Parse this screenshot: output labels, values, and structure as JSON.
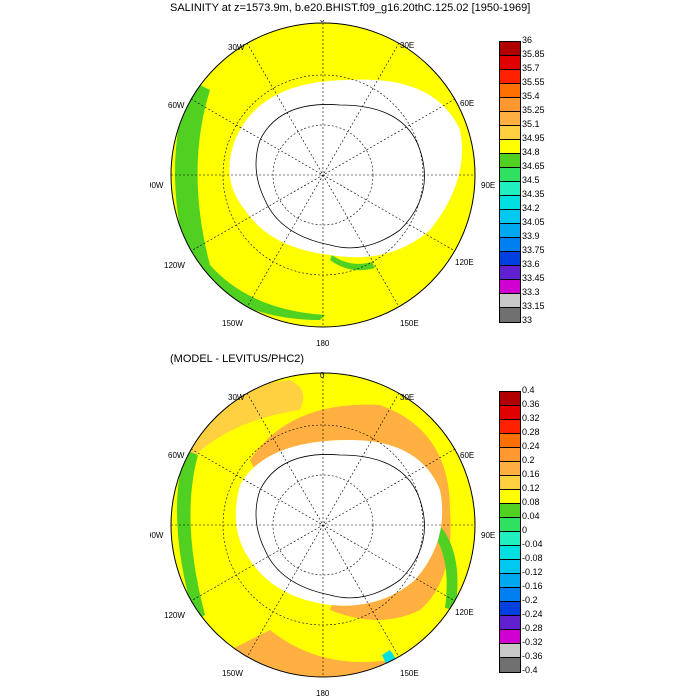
{
  "panel1": {
    "title": "SALINITY at z=1573.9m, b.e20.BHIST.f09_g16.20thC.125.02 [1950-1969]",
    "lon_labels": [
      "0",
      "30E",
      "60E",
      "90E",
      "120E",
      "150E",
      "180",
      "150W",
      "120W",
      "90W",
      "60W",
      "30W"
    ],
    "colorbar": {
      "labels": [
        "36",
        "35.85",
        "35.7",
        "35.55",
        "35.4",
        "35.25",
        "35.1",
        "34.95",
        "34.8",
        "34.65",
        "34.5",
        "34.35",
        "34.2",
        "34.05",
        "33.9",
        "33.75",
        "33.6",
        "33.45",
        "33.3",
        "33.15",
        "33"
      ],
      "colors": [
        "#b00000",
        "#e00000",
        "#ff2000",
        "#ff7000",
        "#ff9830",
        "#ffb040",
        "#ffd040",
        "#ffff00",
        "#50d020",
        "#30e060",
        "#20f0c0",
        "#00e0e0",
        "#00c8f0",
        "#00a8f0",
        "#0080f0",
        "#0040e0",
        "#6020d0",
        "#d000d0",
        "#c8c8c8",
        "#707070"
      ]
    }
  },
  "panel2": {
    "title": "(MODEL - LEVITUS/PHC2)",
    "lon_labels": [
      "0",
      "30E",
      "60E",
      "90E",
      "120E",
      "150E",
      "180",
      "150W",
      "120W",
      "90W",
      "60W",
      "30W"
    ],
    "colorbar": {
      "labels": [
        "0.4",
        "0.36",
        "0.32",
        "0.28",
        "0.24",
        "0.2",
        "0.16",
        "0.12",
        "0.08",
        "0.04",
        "0",
        "-0.04",
        "-0.08",
        "-0.12",
        "-0.16",
        "-0.2",
        "-0.24",
        "-0.28",
        "-0.32",
        "-0.36",
        "-0.4"
      ],
      "colors": [
        "#b00000",
        "#e00000",
        "#ff2000",
        "#ff7000",
        "#ff9830",
        "#ffb040",
        "#ffd040",
        "#ffff00",
        "#50d020",
        "#30e060",
        "#20f0c0",
        "#00e0e0",
        "#00c8f0",
        "#00a8f0",
        "#0080f0",
        "#0040e0",
        "#6020d0",
        "#d000d0",
        "#c8c8c8",
        "#707070"
      ]
    }
  }
}
